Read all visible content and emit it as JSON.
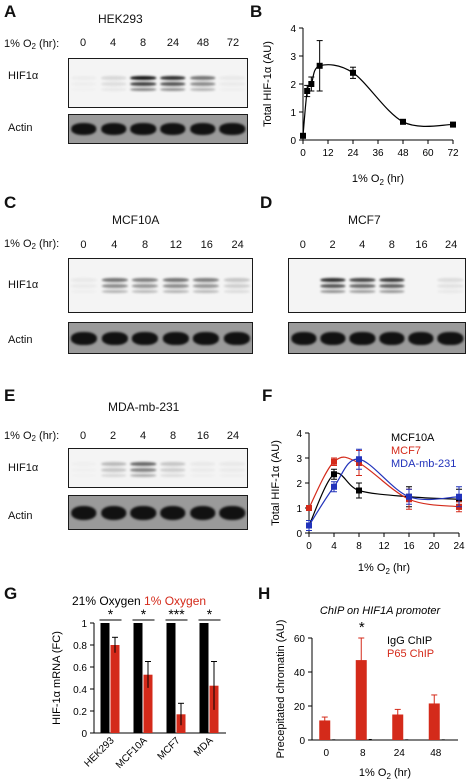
{
  "panels": {
    "A": {
      "letter": "A",
      "title": "HEK293",
      "condition_prefix": "1% O",
      "condition_sub": "2",
      "condition_suffix": " (hr):",
      "lanes": [
        "0",
        "4",
        "8",
        "24",
        "48",
        "72"
      ],
      "rows": [
        "HIF1α",
        "Actin"
      ]
    },
    "C": {
      "letter": "C",
      "title": "MCF10A",
      "condition_prefix": "1% O",
      "condition_sub": "2",
      "condition_suffix": " (hr):",
      "lanes": [
        "0",
        "4",
        "8",
        "12",
        "16",
        "24"
      ],
      "rows": [
        "HIF1α",
        "Actin"
      ]
    },
    "D": {
      "letter": "D",
      "title": "MCF7",
      "lanes": [
        "0",
        "2",
        "4",
        "8",
        "16",
        "24"
      ]
    },
    "E": {
      "letter": "E",
      "title": "MDA-mb-231",
      "condition_prefix": "1% O",
      "condition_sub": "2",
      "condition_suffix": " (hr):",
      "lanes": [
        "0",
        "2",
        "4",
        "8",
        "16",
        "24"
      ],
      "rows": [
        "HIF1α",
        "Actin"
      ]
    }
  },
  "blot_intensity": {
    "A": {
      "hif": [
        0.03,
        0.12,
        0.95,
        0.85,
        0.55,
        0.05
      ],
      "actin": [
        0.95,
        0.95,
        0.95,
        0.95,
        0.95,
        0.95
      ]
    },
    "C": {
      "hif": [
        0.05,
        0.55,
        0.5,
        0.55,
        0.5,
        0.2
      ],
      "actin": [
        0.95,
        0.95,
        0.95,
        0.95,
        0.95,
        0.95
      ]
    },
    "D": {
      "hif": [
        0.0,
        0.85,
        0.75,
        0.8,
        0.0,
        0.1
      ],
      "actin": [
        0.95,
        0.95,
        0.95,
        0.95,
        0.95,
        0.95
      ]
    },
    "E": {
      "hif": [
        0.02,
        0.25,
        0.6,
        0.2,
        0.05,
        0.05
      ],
      "actin": [
        0.95,
        0.95,
        0.95,
        0.95,
        0.95,
        0.95
      ]
    }
  },
  "chart_data": [
    {
      "panel": "B",
      "type": "line",
      "ylabel": "Total HIF-1α (AU)",
      "xlabel_prefix": "1% O",
      "xlabel_sub": "2",
      "xlabel_suffix": " (hr)",
      "xlim": [
        0,
        72
      ],
      "ylim": [
        0,
        4
      ],
      "xticks": [
        "0",
        "12",
        "24",
        "36",
        "48",
        "60",
        "72"
      ],
      "yticks": [
        "0",
        "1",
        "2",
        "3",
        "4"
      ],
      "color": "#000000",
      "points": [
        {
          "x": 0,
          "y": 0.15,
          "err": 0
        },
        {
          "x": 2,
          "y": 1.75,
          "err": 0.2
        },
        {
          "x": 4,
          "y": 2.0,
          "err": 0.25
        },
        {
          "x": 8,
          "y": 2.65,
          "err": 0.9
        },
        {
          "x": 24,
          "y": 2.4,
          "err": 0.2
        },
        {
          "x": 48,
          "y": 0.65,
          "err": 0.05
        },
        {
          "x": 72,
          "y": 0.55,
          "err": 0.05
        }
      ]
    },
    {
      "panel": "F",
      "type": "line",
      "ylabel": "Total HIF-1α (AU)",
      "xlabel_prefix": "1% O",
      "xlabel_sub": "2",
      "xlabel_suffix": " (hr)",
      "xlim": [
        0,
        24
      ],
      "ylim": [
        0,
        4
      ],
      "xticks": [
        "0",
        "4",
        "8",
        "12",
        "16",
        "20",
        "24"
      ],
      "yticks": [
        "0",
        "1",
        "2",
        "3",
        "4"
      ],
      "series": [
        {
          "name": "MCF10A",
          "color": "#000000",
          "points": [
            {
              "x": 0,
              "y": 0.3,
              "err": 0.2
            },
            {
              "x": 4,
              "y": 2.35,
              "err": 0.2
            },
            {
              "x": 8,
              "y": 1.7,
              "err": 0.3
            },
            {
              "x": 16,
              "y": 1.45,
              "err": 0.4
            },
            {
              "x": 24,
              "y": 1.35,
              "err": 0.4
            }
          ]
        },
        {
          "name": "MCF7",
          "color": "#d42a1a",
          "points": [
            {
              "x": 0,
              "y": 1.0,
              "err": 0.1
            },
            {
              "x": 4,
              "y": 2.85,
              "err": 0.15
            },
            {
              "x": 8,
              "y": 2.8,
              "err": 0.5
            },
            {
              "x": 16,
              "y": 1.35,
              "err": 0.4
            },
            {
              "x": 24,
              "y": 1.05,
              "err": 0.2
            }
          ]
        },
        {
          "name": "MDA-mb-231",
          "color": "#2233bb",
          "points": [
            {
              "x": 0,
              "y": 0.3,
              "err": 0.2
            },
            {
              "x": 4,
              "y": 1.85,
              "err": 0.2
            },
            {
              "x": 8,
              "y": 2.95,
              "err": 0.4
            },
            {
              "x": 16,
              "y": 1.45,
              "err": 0.3
            },
            {
              "x": 24,
              "y": 1.45,
              "err": 0.4
            }
          ]
        }
      ]
    },
    {
      "panel": "G",
      "type": "bar",
      "ylabel": "HIF-1α mRNA (FC)",
      "ylim": [
        0,
        1
      ],
      "yticks": [
        "0",
        "0.2",
        "0.4",
        "0.6",
        "0.8",
        "1"
      ],
      "legend_black": "21% Oxygen",
      "legend_red": "1% Oxygen",
      "categories": [
        "HEK293",
        "MCF10A",
        "MCF7",
        "MDA"
      ],
      "series": [
        {
          "name": "21% Oxygen",
          "color": "#000000",
          "values": [
            1,
            1,
            1,
            1
          ],
          "err": [
            0,
            0,
            0,
            0
          ]
        },
        {
          "name": "1% Oxygen",
          "color": "#d42a1a",
          "values": [
            0.8,
            0.53,
            0.17,
            0.43
          ],
          "err": [
            0.07,
            0.12,
            0.1,
            0.22
          ]
        }
      ],
      "significance": [
        "*",
        "*",
        "***",
        "*"
      ]
    },
    {
      "panel": "H",
      "type": "bar",
      "title": "ChIP on HIF1A promoter",
      "ylabel": "Precepitated chromatin (AU)",
      "xlabel_prefix": "1% O",
      "xlabel_sub": "2",
      "xlabel_suffix": " (hr)",
      "ylim": [
        0,
        60
      ],
      "yticks": [
        "0",
        "20",
        "40",
        "60"
      ],
      "categories": [
        "0",
        "8",
        "24",
        "48"
      ],
      "series": [
        {
          "name": "IgG ChIP",
          "color": "#000000",
          "values": [
            0.4,
            0.6,
            0.4,
            0.4
          ],
          "err": [
            0,
            0,
            0,
            0
          ]
        },
        {
          "name": "P65 ChIP",
          "color": "#d42a1a",
          "values": [
            11.5,
            47,
            15,
            21.5
          ],
          "err": [
            2,
            13,
            3,
            5
          ]
        }
      ],
      "significance": [
        "",
        "*",
        "",
        ""
      ]
    }
  ]
}
